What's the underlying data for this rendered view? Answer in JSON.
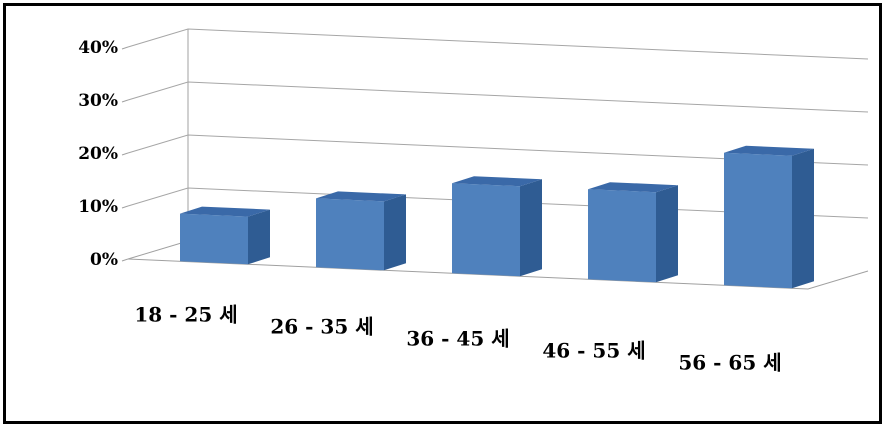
{
  "chart_data": {
    "type": "bar",
    "categories": [
      "18 - 25 세",
      "26 - 35 세",
      "36 - 45 세",
      "46 - 55 세",
      "56 - 65 세"
    ],
    "values": [
      9,
      13,
      17,
      17,
      25
    ],
    "yticks": [
      "0%",
      "10%",
      "20%",
      "30%",
      "40%"
    ],
    "ylim": [
      0,
      40
    ],
    "grid": true,
    "style": "3d-column",
    "bar_color": "#4F81BD",
    "bar_side_color": "#2F5C93",
    "bar_top_color": "#3A69A8"
  }
}
